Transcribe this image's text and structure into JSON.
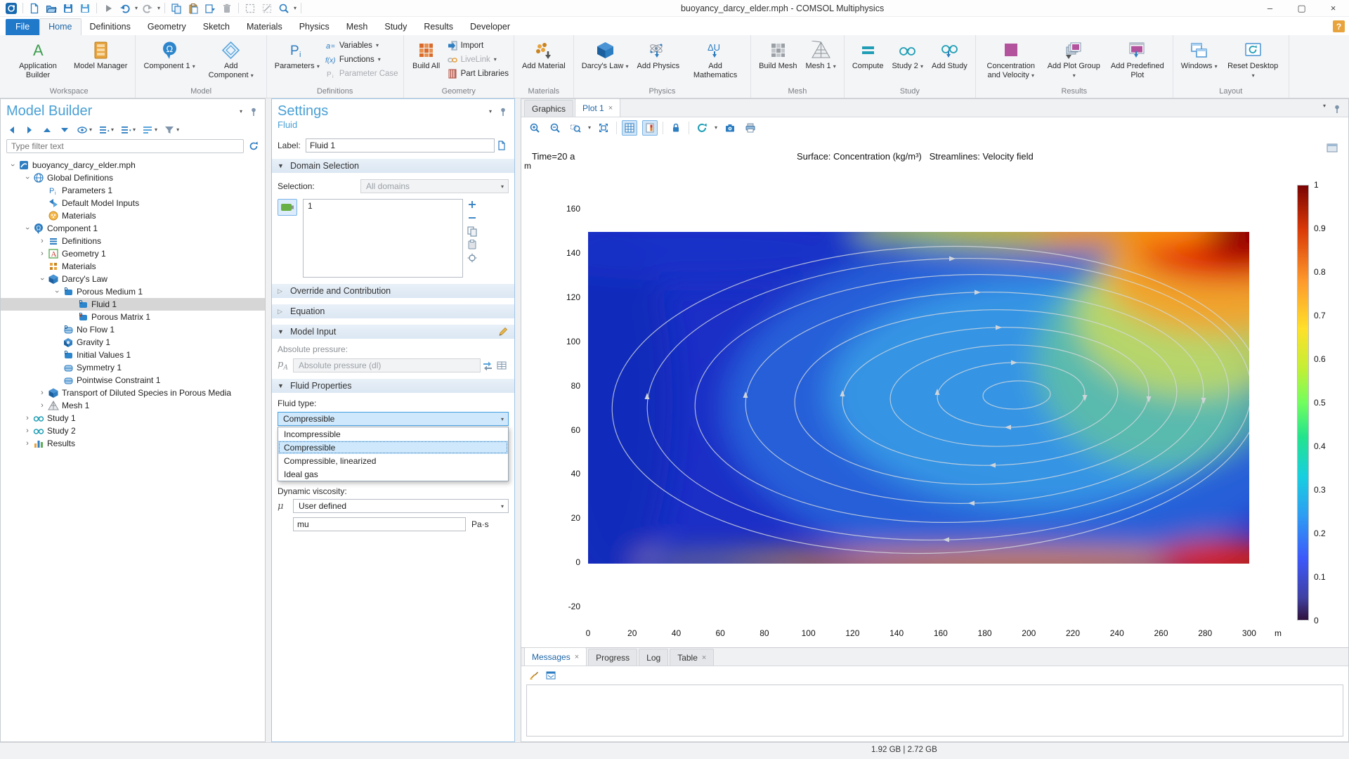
{
  "window": {
    "title": "buoyancy_darcy_elder.mph - COMSOL Multiphysics"
  },
  "qat": {
    "items": [
      "app-logo",
      "sep",
      "new",
      "open",
      "save",
      "save-as",
      "sep",
      "run",
      "undo",
      "redo",
      "sep",
      "copy",
      "paste",
      "duplicate",
      "delete",
      "sep",
      "select-box",
      "deselect-box",
      "zoom-select",
      "sep"
    ]
  },
  "menu": {
    "active": "Home",
    "tabs": [
      "File",
      "Home",
      "Definitions",
      "Geometry",
      "Sketch",
      "Materials",
      "Physics",
      "Mesh",
      "Study",
      "Results",
      "Developer"
    ],
    "help": "?"
  },
  "ribbon": {
    "groups": [
      {
        "label": "Workspace",
        "bigs": [
          {
            "label": "Application Builder",
            "icon": "application-builder"
          },
          {
            "label": "Model Manager",
            "icon": "model-manager"
          }
        ]
      },
      {
        "label": "Model",
        "bigs": [
          {
            "label": "Component 1",
            "icon": "component",
            "arrow": true
          },
          {
            "label": "Add Component",
            "icon": "add-component",
            "arrow": true
          }
        ]
      },
      {
        "label": "Definitions",
        "bigs": [
          {
            "label": "Parameters",
            "icon": "parameters",
            "arrow": true
          }
        ],
        "smalls": [
          {
            "label": "Variables",
            "icon": "variables",
            "arrow": true
          },
          {
            "label": "Functions",
            "icon": "functions",
            "arrow": true
          },
          {
            "label": "Parameter Case",
            "icon": "parameter-case",
            "disabled": true
          }
        ]
      },
      {
        "label": "Geometry",
        "bigs": [
          {
            "label": "Build All",
            "icon": "build-all"
          }
        ],
        "smalls": [
          {
            "label": "Import",
            "icon": "import"
          },
          {
            "label": "LiveLink",
            "icon": "livelink",
            "arrow": true,
            "disabled": true
          },
          {
            "label": "Part Libraries",
            "icon": "part-libraries"
          }
        ]
      },
      {
        "label": "Materials",
        "bigs": [
          {
            "label": "Add Material",
            "icon": "add-material"
          }
        ]
      },
      {
        "label": "Physics",
        "bigs": [
          {
            "label": "Darcy's Law",
            "icon": "darcys-law",
            "arrow": true
          },
          {
            "label": "Add Physics",
            "icon": "add-physics"
          },
          {
            "label": "Add Mathematics",
            "icon": "add-mathematics"
          }
        ]
      },
      {
        "label": "Mesh",
        "bigs": [
          {
            "label": "Build Mesh",
            "icon": "build-mesh"
          },
          {
            "label": "Mesh 1",
            "icon": "mesh",
            "arrow": true
          }
        ]
      },
      {
        "label": "Study",
        "bigs": [
          {
            "label": "Compute",
            "icon": "compute"
          },
          {
            "label": "Study 2",
            "icon": "study",
            "arrow": true
          },
          {
            "label": "Add Study",
            "icon": "add-study"
          }
        ]
      },
      {
        "label": "Results",
        "bigs": [
          {
            "label": "Concentration and Velocity",
            "icon": "conc-velocity",
            "arrow": true
          },
          {
            "label": "Add Plot Group",
            "icon": "add-plot-group",
            "arrow": true
          },
          {
            "label": "Add Predefined Plot",
            "icon": "add-predefined-plot"
          }
        ]
      },
      {
        "label": "Layout",
        "bigs": [
          {
            "label": "Windows",
            "icon": "windows",
            "arrow": true
          },
          {
            "label": "Reset Desktop",
            "icon": "reset-desktop",
            "arrow": true
          }
        ]
      }
    ]
  },
  "model_builder": {
    "title": "Model Builder",
    "filter_placeholder": "Type filter text",
    "tree": [
      {
        "label": "buoyancy_darcy_elder.mph",
        "indent": 0,
        "exp": "open",
        "icon": "model-root"
      },
      {
        "label": "Global Definitions",
        "indent": 1,
        "exp": "open",
        "icon": "globe"
      },
      {
        "label": "Parameters 1",
        "indent": 2,
        "icon": "parameters-node"
      },
      {
        "label": "Default Model Inputs",
        "indent": 2,
        "icon": "model-inputs"
      },
      {
        "label": "Materials",
        "indent": 2,
        "icon": "materials-global"
      },
      {
        "label": "Component 1",
        "indent": 1,
        "exp": "open",
        "icon": "component-node"
      },
      {
        "label": "Definitions",
        "indent": 2,
        "exp": "closed",
        "icon": "definitions-node"
      },
      {
        "label": "Geometry 1",
        "indent": 2,
        "exp": "closed",
        "icon": "geometry-node"
      },
      {
        "label": "Materials",
        "indent": 2,
        "icon": "materials-comp"
      },
      {
        "label": "Darcy's Law",
        "indent": 2,
        "exp": "open",
        "icon": "physics-cube"
      },
      {
        "label": "Porous Medium 1",
        "indent": 3,
        "exp": "open",
        "icon": "domain-node"
      },
      {
        "label": "Fluid 1",
        "indent": 4,
        "icon": "domain-node",
        "selected": true
      },
      {
        "label": "Porous Matrix 1",
        "indent": 4,
        "icon": "matrix-node"
      },
      {
        "label": "No Flow 1",
        "indent": 3,
        "icon": "boundary-node"
      },
      {
        "label": "Gravity 1",
        "indent": 3,
        "icon": "gravity-node"
      },
      {
        "label": "Initial Values 1",
        "indent": 3,
        "icon": "domain-node"
      },
      {
        "label": "Symmetry 1",
        "indent": 3,
        "icon": "boundary-plain"
      },
      {
        "label": "Pointwise Constraint 1",
        "indent": 3,
        "icon": "boundary-plain"
      },
      {
        "label": "Transport of Diluted Species in Porous Media",
        "indent": 2,
        "exp": "closed",
        "icon": "physics-cube"
      },
      {
        "label": "Mesh 1",
        "indent": 2,
        "exp": "closed",
        "icon": "mesh-node"
      },
      {
        "label": "Study 1",
        "indent": 1,
        "exp": "closed",
        "icon": "study-node"
      },
      {
        "label": "Study 2",
        "indent": 1,
        "exp": "closed",
        "icon": "study-node"
      },
      {
        "label": "Results",
        "indent": 1,
        "exp": "closed",
        "icon": "results-node"
      }
    ]
  },
  "settings": {
    "title": "Settings",
    "subtitle": "Fluid",
    "label_caption": "Label:",
    "label_value": "Fluid 1",
    "sections": {
      "domain_selection": "Domain Selection",
      "override": "Override and Contribution",
      "equation": "Equation",
      "model_input": "Model Input",
      "fluid_properties": "Fluid Properties"
    },
    "selection_caption": "Selection:",
    "selection_value": "All domains",
    "selection_list": [
      "1"
    ],
    "abs_pressure_caption": "Absolute pressure:",
    "abs_pressure_symbol": "p",
    "abs_pressure_sub": "A",
    "abs_pressure_value": "Absolute pressure (dl)",
    "fluid_type_caption": "Fluid type:",
    "fluid_type_value": "Compressible",
    "fluid_type_options": [
      "Incompressible",
      "Compressible",
      "Compressible, linearized",
      "Ideal gas"
    ],
    "fluid_type_selected": "Compressible",
    "viscosity_caption": "Dynamic viscosity:",
    "viscosity_symbol": "μ",
    "viscosity_value": "User defined",
    "viscosity_input": "mu",
    "viscosity_unit": "Pa·s"
  },
  "graphics": {
    "tabs": [
      {
        "label": "Graphics",
        "active": false,
        "close": false
      },
      {
        "label": "Plot 1",
        "active": true,
        "close": true
      }
    ],
    "plot": {
      "time_label": "Time=20 a",
      "surface_label": "Surface: Concentration (kg/m³)",
      "streamline_label": "Streamlines: Velocity field",
      "y_unit": "m",
      "x_unit": "m",
      "x_ticks": [
        0,
        20,
        40,
        60,
        80,
        100,
        120,
        140,
        160,
        180,
        200,
        220,
        240,
        260,
        280,
        300
      ],
      "y_ticks": [
        160,
        140,
        120,
        100,
        80,
        60,
        40,
        20,
        0,
        -20
      ],
      "colorbar_ticks": [
        "1",
        "0.9",
        "0.8",
        "0.7",
        "0.6",
        "0.5",
        "0.4",
        "0.3",
        "0.2",
        "0.1",
        "0"
      ]
    }
  },
  "messages": {
    "tabs": [
      {
        "label": "Messages",
        "active": true,
        "close": true
      },
      {
        "label": "Progress",
        "active": false,
        "close": false
      },
      {
        "label": "Log",
        "active": false,
        "close": false
      },
      {
        "label": "Table",
        "active": false,
        "close": true
      }
    ]
  },
  "statusbar": {
    "memory": "1.92 GB | 2.72 GB"
  }
}
